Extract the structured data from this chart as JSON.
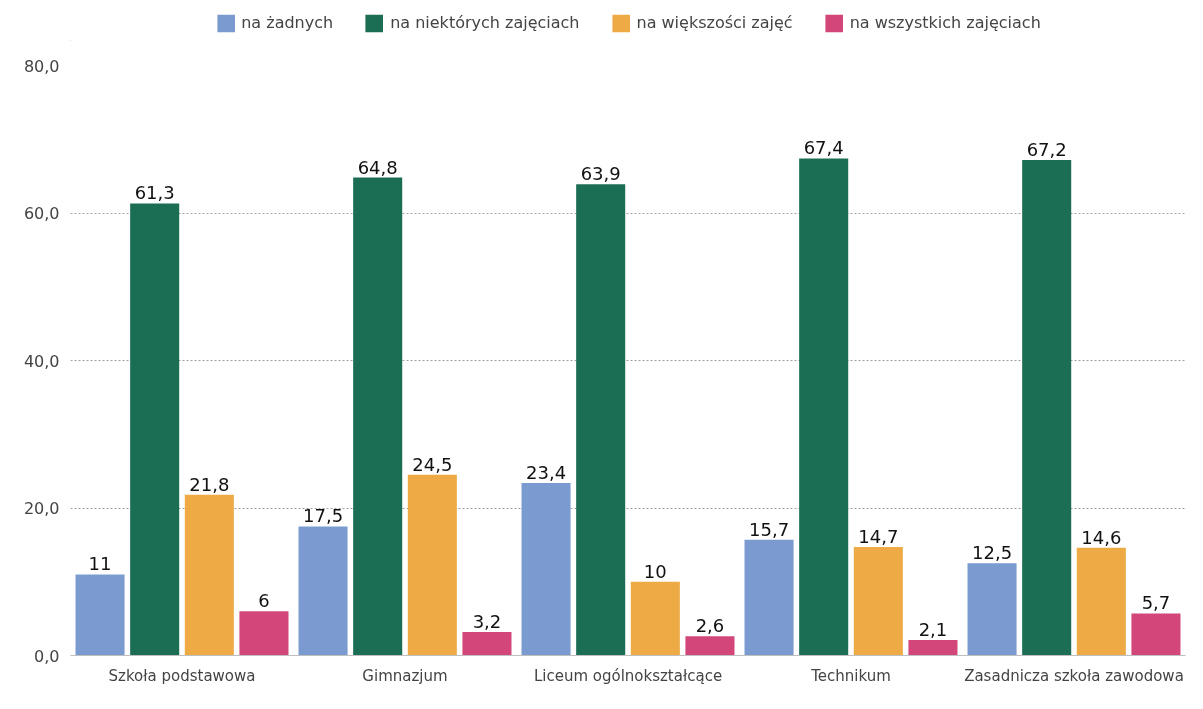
{
  "chart_data": {
    "type": "bar",
    "categories": [
      "Szkoła podstawowa",
      "Gimnazjum",
      "Liceum ogólnokształcące",
      "Technikum",
      "Zasadnicza szkoła zawodowa"
    ],
    "series": [
      {
        "name": "na żadnych",
        "color": "#7b9bd0",
        "values": [
          11,
          17.5,
          23.4,
          15.7,
          12.5
        ],
        "value_labels": [
          "11",
          "17,5",
          "23,4",
          "15,7",
          "12,5"
        ]
      },
      {
        "name": "na niektórych zajęciach",
        "color": "#1b6e54",
        "values": [
          61.3,
          64.8,
          63.9,
          67.4,
          67.2
        ],
        "value_labels": [
          "61,3",
          "64,8",
          "63,9",
          "67,4",
          "67,2"
        ]
      },
      {
        "name": "na większości zajęć",
        "color": "#eeaa45",
        "values": [
          21.8,
          24.5,
          10,
          14.7,
          14.6
        ],
        "value_labels": [
          "21,8",
          "24,5",
          "10",
          "14,7",
          "14,6"
        ]
      },
      {
        "name": "na wszystkich zajęciach",
        "color": "#d2467a",
        "values": [
          6,
          3.2,
          2.6,
          2.1,
          5.7
        ],
        "value_labels": [
          "6",
          "3,2",
          "2,6",
          "2,1",
          "5,7"
        ]
      }
    ],
    "ylim": [
      0,
      80
    ],
    "yticks": [
      {
        "value": 0,
        "label": "0,0"
      },
      {
        "value": 20,
        "label": "20,0"
      },
      {
        "value": 40,
        "label": "40,0"
      },
      {
        "value": 60,
        "label": "60,0"
      },
      {
        "value": 80,
        "label": "80,0"
      }
    ],
    "grid": "y",
    "legend": "top"
  }
}
